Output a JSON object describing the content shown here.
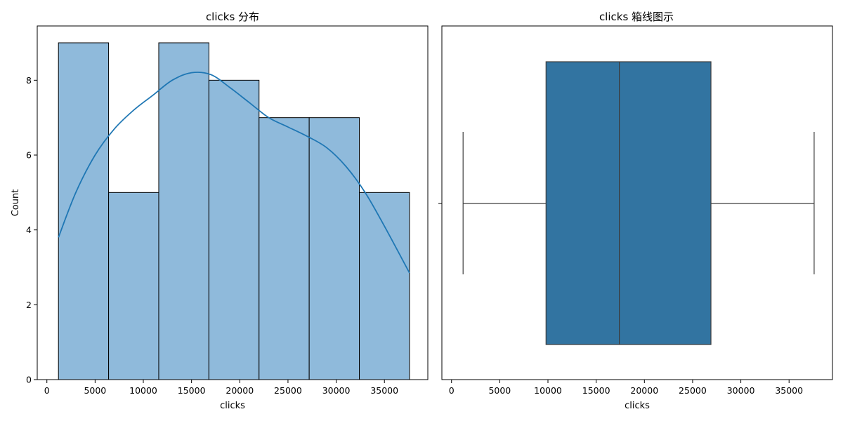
{
  "chart_data": [
    {
      "type": "histogram",
      "title": "clicks 分布",
      "xlabel": "clicks",
      "ylabel": "Count",
      "xlim": [
        -1000,
        39500
      ],
      "ylim": [
        0,
        9.45
      ],
      "xticks": [
        0,
        5000,
        10000,
        15000,
        20000,
        25000,
        30000,
        35000
      ],
      "yticks": [
        0,
        2,
        4,
        6,
        8
      ],
      "bins": [
        {
          "start": 1200,
          "end": 6400,
          "count": 9
        },
        {
          "start": 6400,
          "end": 11600,
          "count": 5
        },
        {
          "start": 11600,
          "end": 16800,
          "count": 9
        },
        {
          "start": 16800,
          "end": 22000,
          "count": 8
        },
        {
          "start": 22000,
          "end": 27200,
          "count": 7
        },
        {
          "start": 27200,
          "end": 32400,
          "count": 7
        },
        {
          "start": 32400,
          "end": 37600,
          "count": 5
        }
      ],
      "kde": {
        "x": [
          1200,
          3000,
          5000,
          7000,
          9000,
          11000,
          13000,
          15000,
          17000,
          19000,
          21000,
          23000,
          25000,
          27000,
          29000,
          31000,
          33000,
          35000,
          37600
        ],
        "y": [
          3.8,
          5.0,
          6.0,
          6.7,
          7.2,
          7.6,
          8.0,
          8.2,
          8.15,
          7.8,
          7.4,
          7.0,
          6.75,
          6.5,
          6.2,
          5.7,
          5.0,
          4.1,
          2.85
        ]
      },
      "colors": {
        "bar_fill": "#8fbadb",
        "bar_edge": "#000000",
        "kde": "#1f77b4"
      }
    },
    {
      "type": "box",
      "title": "clicks 箱线图示",
      "xlabel": "clicks",
      "xlim": [
        -1000,
        39500
      ],
      "xticks": [
        0,
        5000,
        10000,
        15000,
        20000,
        25000,
        30000,
        35000
      ],
      "whisker_low": 1200,
      "q1": 9800,
      "median": 17400,
      "q3": 26900,
      "whisker_high": 37600,
      "colors": {
        "box_fill": "#3274a1",
        "line": "#3d3d3d"
      }
    }
  ]
}
